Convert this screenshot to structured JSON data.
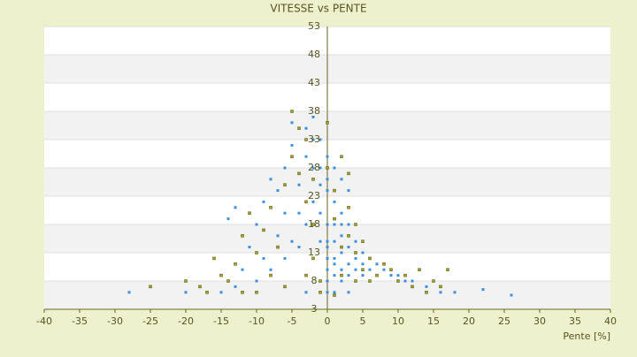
{
  "chart_data": {
    "type": "scatter",
    "title": "VITESSE vs PENTE",
    "x_label": "Pente [%]",
    "xlim": [
      -40,
      40
    ],
    "xticks": [
      -40,
      -35,
      -30,
      -25,
      -20,
      -15,
      -10,
      -5,
      0,
      5,
      10,
      15,
      20,
      25,
      30,
      35,
      40
    ],
    "ylim": [
      3,
      53
    ],
    "yticks": [
      3,
      8,
      13,
      18,
      23,
      28,
      33,
      38,
      43,
      48,
      53
    ],
    "series": [
      {
        "color": "#3c8fdc",
        "x": [
          -28,
          -20,
          -15,
          -13,
          -10,
          -8,
          -6,
          -5,
          -4,
          -4,
          -3,
          -3,
          -2,
          -5,
          -2,
          -1,
          -1,
          0,
          0,
          0,
          0,
          0,
          0,
          1,
          1,
          1,
          1,
          1,
          2,
          2,
          2,
          2,
          2,
          3,
          3,
          3,
          3,
          4,
          4,
          4,
          5,
          5,
          5,
          6,
          6,
          7,
          7,
          8,
          9,
          10,
          11,
          12,
          14,
          16,
          18,
          22,
          26,
          -1,
          -2,
          0,
          -1,
          0,
          0,
          -2,
          -3,
          -4,
          -6,
          -7,
          -9,
          -10,
          -13,
          -14,
          -8,
          -7,
          1,
          2,
          3,
          -1,
          1,
          3,
          -3,
          -12,
          -11,
          -9,
          -6,
          -5,
          -1,
          1,
          0,
          2
        ],
        "y": [
          6,
          6,
          6,
          7,
          8,
          10,
          12,
          15,
          20,
          25,
          30,
          35,
          37,
          36,
          28,
          25,
          20,
          18,
          15,
          12,
          10,
          8,
          6,
          22,
          18,
          15,
          12,
          9,
          20,
          16,
          13,
          10,
          8,
          18,
          14,
          11,
          9,
          15,
          12,
          10,
          13,
          11,
          9,
          12,
          10,
          11,
          9,
          10,
          9,
          9,
          8,
          8,
          7,
          6,
          6,
          6.5,
          5.5,
          33,
          33,
          30,
          28,
          26,
          24,
          22,
          18,
          14,
          20,
          16,
          12,
          18,
          21,
          19,
          26,
          24,
          28,
          26,
          24,
          6,
          6,
          6,
          6,
          10,
          14,
          22,
          28,
          32,
          15,
          11,
          14,
          18
        ]
      },
      {
        "color": "#a3a329",
        "x": [
          -25,
          -20,
          -18,
          -15,
          -13,
          -12,
          -11,
          -10,
          -9,
          -8,
          -7,
          -6,
          -5,
          -4,
          -3,
          -4,
          -3,
          -2,
          -2,
          -1,
          -1,
          0,
          1,
          1,
          2,
          2,
          3,
          3,
          4,
          4,
          5,
          5,
          6,
          7,
          8,
          9,
          10,
          11,
          12,
          13,
          15,
          16,
          17,
          -14,
          -16,
          -10,
          -6,
          -3,
          0,
          -5,
          -2,
          2,
          3,
          6,
          -8,
          -12,
          4,
          1,
          14,
          -17
        ],
        "y": [
          7,
          8,
          7,
          9,
          11,
          16,
          20,
          13,
          17,
          21,
          14,
          25,
          30,
          35,
          33,
          27,
          22,
          18,
          12,
          8,
          6,
          28,
          24,
          19,
          14,
          9,
          21,
          16,
          13,
          8,
          15,
          10,
          12,
          9,
          11,
          10,
          8,
          9,
          7,
          10,
          8,
          7,
          10,
          8,
          12,
          6,
          7,
          9,
          36,
          38,
          26,
          30,
          27,
          8,
          9,
          6,
          18,
          5.5,
          6,
          6
        ]
      }
    ]
  }
}
